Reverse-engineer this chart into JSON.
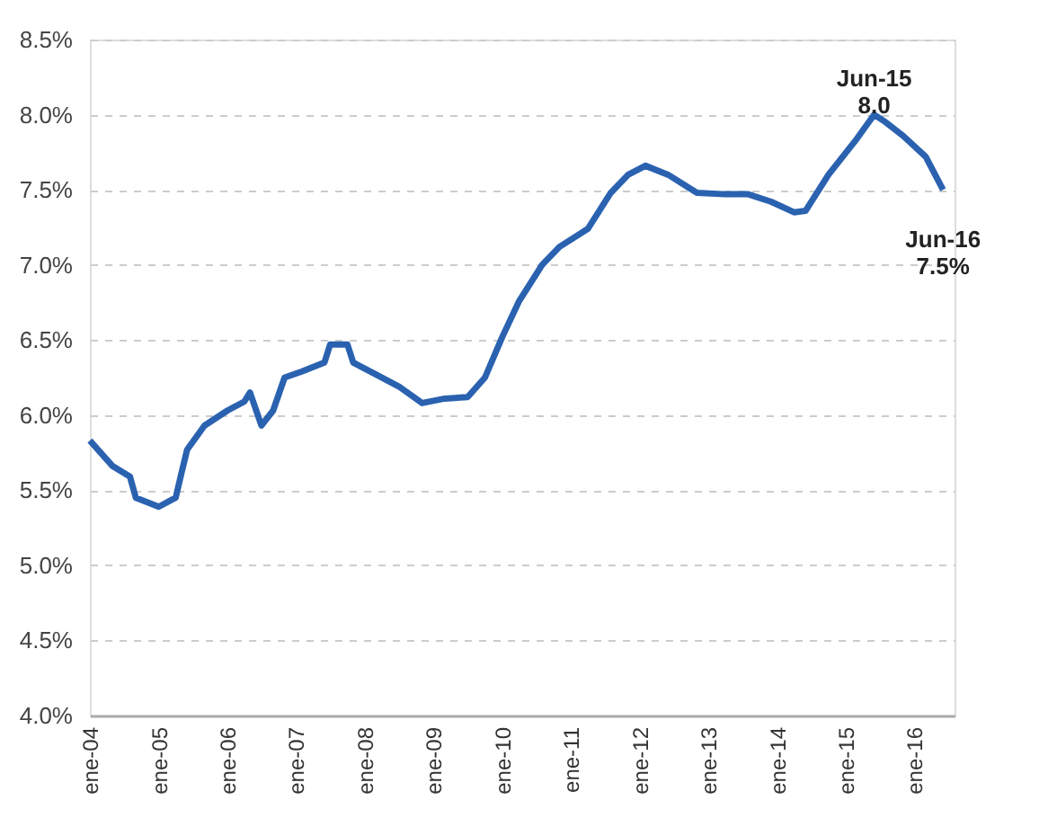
{
  "chart_data": {
    "type": "line",
    "x": [
      "2004-01",
      "2004-05",
      "2004-08",
      "2004-09",
      "2005-01",
      "2005-04",
      "2005-05",
      "2005-06",
      "2005-09",
      "2006-01",
      "2006-04",
      "2006-05",
      "2006-07",
      "2006-09",
      "2006-11",
      "2007-02",
      "2007-06",
      "2007-07",
      "2007-10",
      "2007-11",
      "2008-03",
      "2008-07",
      "2008-11",
      "2009-03",
      "2009-07",
      "2009-10",
      "2010-01",
      "2010-04",
      "2010-08",
      "2010-11",
      "2011-04",
      "2011-08",
      "2011-11",
      "2012-02",
      "2012-06",
      "2012-11",
      "2013-04",
      "2013-08",
      "2013-12",
      "2014-04",
      "2014-06",
      "2014-10",
      "2015-03",
      "2015-06",
      "2015-08",
      "2015-11",
      "2016-03",
      "2016-06"
    ],
    "series": [
      {
        "color": "#2a62b0",
        "values": [
          5.83,
          5.66,
          5.59,
          5.45,
          5.39,
          5.45,
          5.61,
          5.77,
          5.93,
          6.03,
          6.09,
          6.15,
          5.93,
          6.03,
          6.25,
          6.29,
          6.35,
          6.47,
          6.47,
          6.35,
          6.27,
          6.19,
          6.08,
          6.11,
          6.12,
          6.25,
          6.52,
          6.76,
          7.0,
          7.12,
          7.24,
          7.48,
          7.6,
          7.66,
          7.6,
          7.48,
          7.47,
          7.47,
          7.42,
          7.35,
          7.36,
          7.6,
          7.84,
          8.0,
          7.95,
          7.86,
          7.72,
          7.5
        ]
      }
    ],
    "xlim": [
      "2004-01",
      "2016-08"
    ],
    "xticks": [
      {
        "value": "2004-01",
        "label": "ene-04"
      },
      {
        "value": "2005-01",
        "label": "ene-05"
      },
      {
        "value": "2006-01",
        "label": "ene-06"
      },
      {
        "value": "2007-01",
        "label": "ene-07"
      },
      {
        "value": "2008-01",
        "label": "ene-08"
      },
      {
        "value": "2009-01",
        "label": "ene-09"
      },
      {
        "value": "2010-01",
        "label": "ene-10"
      },
      {
        "value": "2011-01",
        "label": "ene-11"
      },
      {
        "value": "2012-01",
        "label": "ene-12"
      },
      {
        "value": "2013-01",
        "label": "ene-13"
      },
      {
        "value": "2014-01",
        "label": "ene-14"
      },
      {
        "value": "2015-01",
        "label": "ene-15"
      },
      {
        "value": "2016-01",
        "label": "ene-16"
      }
    ],
    "ylim": [
      4.0,
      8.5
    ],
    "yticks": [
      {
        "value": 4.0,
        "label": "4.0%"
      },
      {
        "value": 4.5,
        "label": "4.5%"
      },
      {
        "value": 5.0,
        "label": "5.0%"
      },
      {
        "value": 5.5,
        "label": "5.5%"
      },
      {
        "value": 6.0,
        "label": "6.0%"
      },
      {
        "value": 6.5,
        "label": "6.5%"
      },
      {
        "value": 7.0,
        "label": "7.0%"
      },
      {
        "value": 7.5,
        "label": "7.5%"
      },
      {
        "value": 8.0,
        "label": "8.0%"
      },
      {
        "value": 8.5,
        "label": "8.5%"
      }
    ],
    "grid": "y",
    "line_style": "solid",
    "marker": "none",
    "annotations": [
      {
        "text": "Jun-15\n8.0",
        "x": "2015-06",
        "y": 8.0
      },
      {
        "text": "Jun-16\n7.5%",
        "x": "2016-06",
        "y": 7.5
      }
    ]
  }
}
